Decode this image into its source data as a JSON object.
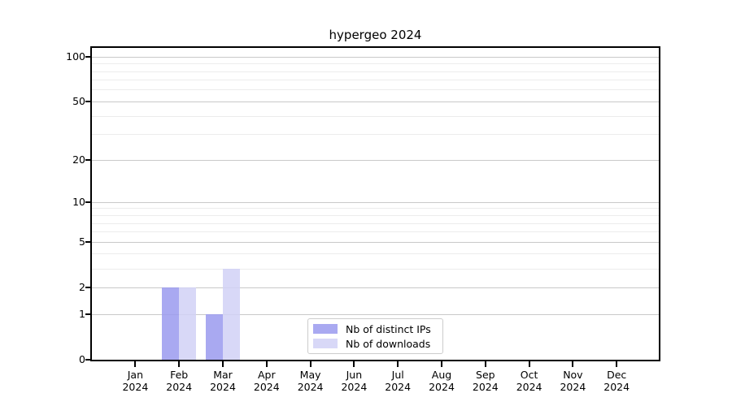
{
  "title": "hypergeo 2024",
  "chart_data": {
    "type": "bar",
    "title": "hypergeo 2024",
    "categories": [
      "Jan",
      "Feb",
      "Mar",
      "Apr",
      "May",
      "Jun",
      "Jul",
      "Aug",
      "Sep",
      "Oct",
      "Nov",
      "Dec"
    ],
    "category_year_label": "2024",
    "series": [
      {
        "name": "Nb of distinct IPs",
        "color": "#9a9aee",
        "values": [
          0,
          2,
          1,
          0,
          0,
          0,
          0,
          0,
          0,
          0,
          0,
          0
        ]
      },
      {
        "name": "Nb of downloads",
        "color": "#d1d1f6",
        "values": [
          0,
          2,
          3,
          0,
          0,
          0,
          0,
          0,
          0,
          0,
          0,
          0
        ]
      }
    ],
    "xlabel": "",
    "ylabel": "",
    "grid": true,
    "legend_position": "lower center inside plot",
    "y_axis": {
      "scale": "log1p",
      "major_ticks": [
        0,
        1,
        2,
        5,
        10,
        20,
        50,
        100
      ],
      "minor_ticks": [
        3,
        4,
        6,
        7,
        8,
        9,
        30,
        40,
        60,
        70,
        80,
        90
      ],
      "display_max": 115
    }
  },
  "colors": {
    "major_grid": "#c9c9c9",
    "minor_grid": "#ececec",
    "spine": "#000000",
    "legend_border": "#cccccc"
  }
}
